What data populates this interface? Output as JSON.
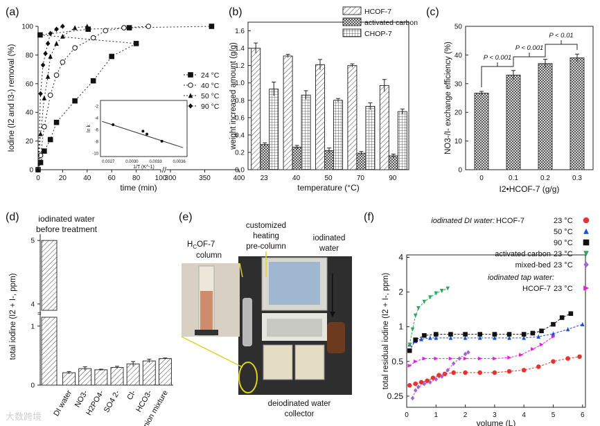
{
  "panels": {
    "a": "(a)",
    "b": "(b)",
    "c": "(c)",
    "d": "(d)",
    "e": "(e)",
    "f": "(f)"
  },
  "photo": {
    "column_label": "H",
    "column_sub": "C",
    "column_rest": "OF-7",
    "column_word": "column",
    "heating_1": "customized",
    "heating_2": "heating",
    "heating_3": "pre-column",
    "water_1": "iodinated",
    "water_2": "water",
    "collector_1": "deiodinated water",
    "collector_2": "collector"
  },
  "watermark": "大数跨境",
  "chart_data": [
    {
      "id": "a",
      "type": "scatter",
      "title": "",
      "xlabel": "time (min)",
      "ylabel": "Iodine (I2 and I3-) removal (%)",
      "xticks": [
        "0",
        "20",
        "40",
        "60",
        "80",
        "100",
        "300",
        "350",
        "400"
      ],
      "yticks": [
        "0",
        "20",
        "40",
        "60",
        "80",
        "100"
      ],
      "xbreak": true,
      "series": [
        {
          "name": "24 °C",
          "marker": "square",
          "x": [
            0,
            2,
            5,
            10,
            15,
            30,
            45,
            60,
            80,
            110,
            180,
            240,
            360
          ],
          "y": [
            0,
            5,
            13,
            21,
            33,
            48,
            62,
            79,
            88,
            94,
            98,
            99,
            100
          ]
        },
        {
          "name": "40 °C",
          "marker": "circle-open",
          "x": [
            0,
            2,
            5,
            10,
            15,
            20,
            30,
            45,
            55,
            70,
            90
          ],
          "y": [
            0,
            10,
            30,
            52,
            66,
            75,
            85,
            92,
            97,
            99,
            100
          ]
        },
        {
          "name": "50 °C",
          "marker": "triangle",
          "x": [
            0,
            2,
            5,
            8,
            10,
            15,
            20,
            30,
            40
          ],
          "y": [
            0,
            25,
            50,
            65,
            79,
            88,
            93,
            99,
            100
          ]
        },
        {
          "name": "90 °C",
          "marker": "diamond",
          "x": [
            0,
            2,
            4,
            6,
            8,
            10,
            15,
            20
          ],
          "y": [
            0,
            53,
            73,
            81,
            88,
            95,
            98,
            100
          ]
        }
      ],
      "inset": {
        "xlabel": "1/T (K^-1)",
        "ylabel": "ln k",
        "xticks": [
          "0.0027",
          "0.0030",
          "0.0033",
          "0.0036"
        ],
        "yticks": [
          "-2",
          "-4",
          "-6",
          "-8",
          "-10"
        ],
        "x": [
          0.00276,
          0.00314,
          0.00319,
          0.00338
        ],
        "y": [
          -5.1,
          -6.2,
          -6.7,
          -7.9
        ]
      }
    },
    {
      "id": "b",
      "type": "bar",
      "xlabel": "temperature (°C)",
      "ylabel": "weight increased amount (g/g)",
      "categories": [
        "23",
        "40",
        "50",
        "70",
        "90"
      ],
      "ylim": [
        0,
        1.7
      ],
      "yticks": [
        "0.0",
        "0.2",
        "0.4",
        "0.6",
        "0.8",
        "1.0",
        "1.2",
        "1.4",
        "1.6"
      ],
      "series": [
        {
          "name": "HCOF-7",
          "pattern": "hatch",
          "values": [
            1.4,
            1.31,
            1.21,
            1.2,
            0.97
          ],
          "err": [
            0.06,
            0.02,
            0.06,
            0.02,
            0.07
          ]
        },
        {
          "name": "activated carbon",
          "pattern": "cross",
          "values": [
            0.29,
            0.26,
            0.22,
            0.19,
            0.16
          ],
          "err": [
            0.02,
            0.02,
            0.03,
            0.02,
            0.02
          ]
        },
        {
          "name": "CHOP-7",
          "pattern": "grid",
          "values": [
            0.93,
            0.86,
            0.8,
            0.73,
            0.67
          ],
          "err": [
            0.08,
            0.05,
            0.02,
            0.04,
            0.03
          ]
        }
      ]
    },
    {
      "id": "c",
      "type": "bar",
      "xlabel": "I2•HCOF-7 (g/g)",
      "ylabel": "NO3-/I- exchange efficiency (%)",
      "categories": [
        "0",
        "0.1",
        "0.2",
        "0.3"
      ],
      "values": [
        26.7,
        33.0,
        37.0,
        39.0
      ],
      "err": [
        0.6,
        1.6,
        1.5,
        1.3
      ],
      "ylim": [
        0,
        50
      ],
      "yticks": [
        "0",
        "10",
        "20",
        "30",
        "40",
        "50"
      ],
      "annotations": [
        "P < 0.001",
        "P < 0.001",
        "P < 0.01"
      ]
    },
    {
      "id": "d",
      "type": "bar",
      "ylabel": "total iodine (I2 + I-, ppm)",
      "categories": [
        "DI water",
        "NO3-",
        "H2PO4-",
        "SO4 2-",
        "Cl-",
        "HCO3-",
        "anion mixture"
      ],
      "values": [
        0.21,
        0.28,
        0.26,
        0.3,
        0.36,
        0.41,
        0.45
      ],
      "err": [
        0.02,
        0.03,
        0.01,
        0.02,
        0.04,
        0.03,
        0.01
      ],
      "pre_value": 5,
      "pre_label_1": "iodinated water",
      "pre_label_2": "before treatment",
      "yticks": [
        "0",
        "1",
        "4",
        "5"
      ]
    },
    {
      "id": "f",
      "type": "line",
      "xlabel": "volume (L)",
      "ylabel": "total residual iodine (I2 + I-, ppm)",
      "yscale": "log",
      "xticks": [
        "0",
        "1",
        "2",
        "3",
        "4",
        "5",
        "6"
      ],
      "yticks": [
        "0.25",
        "0.5",
        "1",
        "2",
        "4"
      ],
      "legend_headers": [
        "iodinated DI water:",
        "iodinated tap water:"
      ],
      "series": [
        {
          "name": "HCOF-7",
          "temp": "23 °C",
          "color": "#e8322e",
          "marker": "circle",
          "x": [
            0.1,
            0.3,
            0.5,
            0.7,
            0.9,
            1.1,
            1.3,
            1.6,
            2,
            2.5,
            3,
            3.5,
            4,
            4.5,
            5,
            5.5,
            5.9
          ],
          "y": [
            0.31,
            0.32,
            0.33,
            0.34,
            0.36,
            0.38,
            0.39,
            0.4,
            0.4,
            0.4,
            0.4,
            0.41,
            0.42,
            0.45,
            0.5,
            0.53,
            0.55
          ]
        },
        {
          "name": "",
          "temp": "50 °C",
          "color": "#1b4fd6",
          "marker": "triangle",
          "x": [
            0.1,
            0.3,
            0.5,
            0.8,
            1.0,
            1.5,
            2,
            2.5,
            3,
            3.5,
            4,
            4.5,
            5,
            5.5,
            6
          ],
          "y": [
            0.7,
            0.75,
            0.78,
            0.8,
            0.8,
            0.8,
            0.8,
            0.8,
            0.8,
            0.8,
            0.8,
            0.82,
            0.87,
            0.95,
            1.05
          ]
        },
        {
          "name": "",
          "temp": "90 °C",
          "color": "#111111",
          "marker": "square",
          "x": [
            0.1,
            0.3,
            0.6,
            1.0,
            1.5,
            2,
            2.5,
            3,
            3.5,
            4,
            4.3,
            4.6,
            5,
            5.3,
            5.6
          ],
          "y": [
            0.62,
            0.77,
            0.84,
            0.86,
            0.86,
            0.86,
            0.86,
            0.86,
            0.86,
            0.86,
            0.88,
            0.92,
            1.05,
            1.2,
            1.3
          ]
        },
        {
          "name": "activated carbon",
          "temp": "23 °C",
          "color": "#2ea85a",
          "marker": "triangle-down",
          "x": [
            0.1,
            0.2,
            0.3,
            0.4,
            0.6,
            0.8,
            1.0,
            1.2,
            1.4
          ],
          "y": [
            0.7,
            0.95,
            1.25,
            1.45,
            1.65,
            1.8,
            1.95,
            2.05,
            2.15
          ]
        },
        {
          "name": "mixed-bed",
          "temp": "23 °C",
          "color": "#a561d8",
          "marker": "diamond",
          "x": [
            0.2,
            0.3,
            0.4,
            0.6,
            0.8,
            1.0,
            1.2,
            1.4,
            1.6,
            1.8,
            2.0,
            2.1
          ],
          "y": [
            0.24,
            0.28,
            0.3,
            0.32,
            0.33,
            0.35,
            0.37,
            0.42,
            0.48,
            0.53,
            0.58,
            0.6
          ]
        },
        {
          "name": "HCOF-7",
          "temp": "23 °C",
          "color": "#e81ce0",
          "marker": "triangle-right",
          "x": [
            0.1,
            0.3,
            0.6,
            1.0,
            1.5,
            2,
            2.5,
            3,
            3.5,
            3.9,
            4.3,
            4.6,
            5.0
          ],
          "y": [
            0.46,
            0.5,
            0.53,
            0.53,
            0.53,
            0.53,
            0.53,
            0.53,
            0.54,
            0.57,
            0.64,
            0.7,
            0.82
          ]
        }
      ]
    }
  ]
}
